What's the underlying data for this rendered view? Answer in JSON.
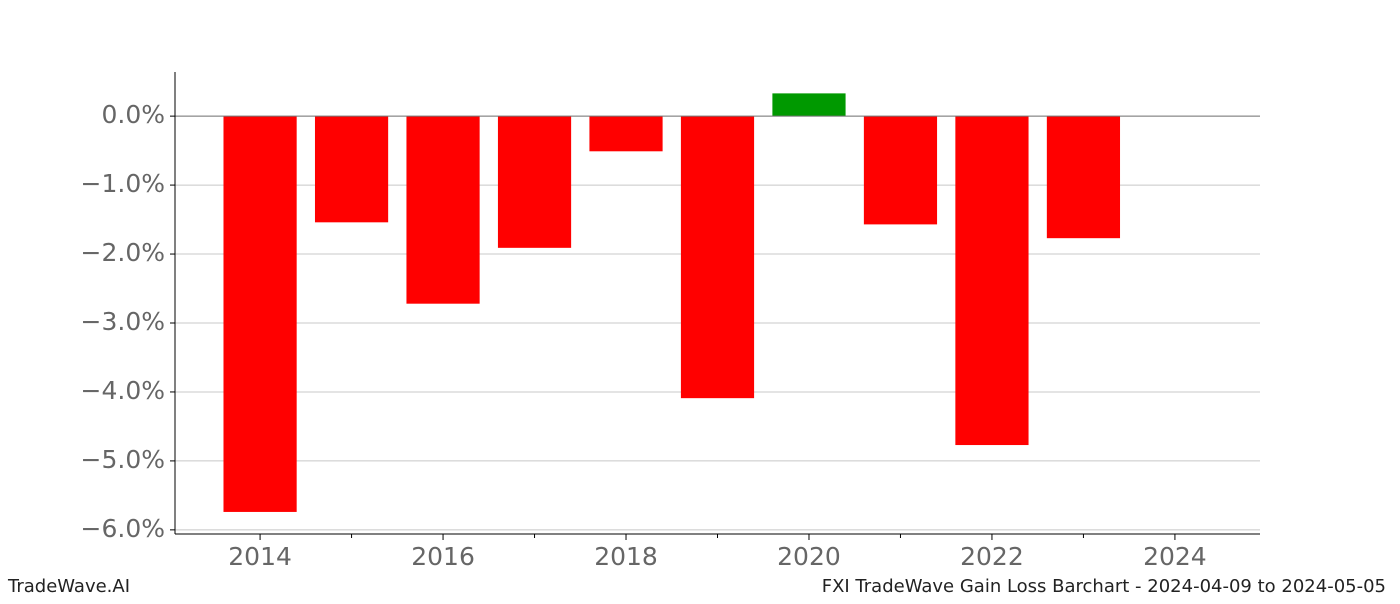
{
  "chart_data": {
    "type": "bar",
    "x": [
      2014,
      2015,
      2016,
      2017,
      2018,
      2019,
      2020,
      2021,
      2022,
      2023
    ],
    "values": [
      -5.74,
      -1.54,
      -2.72,
      -1.91,
      -0.51,
      -4.09,
      0.33,
      -1.57,
      -4.77,
      -1.77
    ],
    "positive_color": "#009900",
    "negative_color": "#ff0000",
    "xlim": [
      2013.07,
      2024.93
    ],
    "xticks": [
      2014,
      2016,
      2018,
      2020,
      2022,
      2024
    ],
    "xminorticks": [
      2015,
      2017,
      2019,
      2021,
      2023
    ],
    "ylim": [
      -6.06,
      0.64
    ],
    "yticks": [
      {
        "value": 0,
        "label": "0.0%"
      },
      {
        "value": -1,
        "label": "−1.0%"
      },
      {
        "value": -2,
        "label": "−2.0%"
      },
      {
        "value": -3,
        "label": "−3.0%"
      },
      {
        "value": -4,
        "label": "−4.0%"
      },
      {
        "value": -5,
        "label": "−5.0%"
      },
      {
        "value": -6,
        "label": "−6.0%"
      }
    ],
    "grid": true,
    "footer_left": "TradeWave.AI",
    "footer_right": "FXI TradeWave Gain Loss Barchart - 2024-04-09 to 2024-05-05"
  }
}
